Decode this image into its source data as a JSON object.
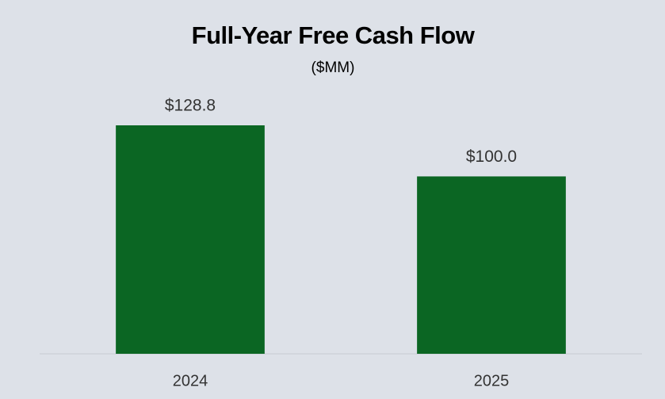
{
  "chart_data": {
    "type": "bar",
    "title": "Full-Year Free Cash Flow",
    "subtitle": "($MM)",
    "categories": [
      "2024",
      "2025"
    ],
    "values": [
      128.8,
      100.0
    ],
    "value_labels": [
      "$128.8",
      "$100.0"
    ],
    "color": "#0b6623"
  }
}
